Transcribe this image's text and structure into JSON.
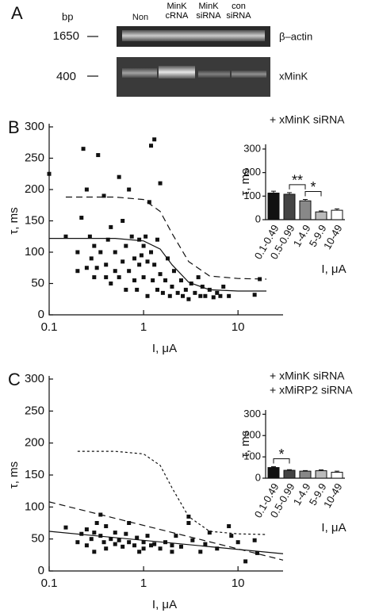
{
  "gel": {
    "panel_label": "A",
    "unit": "bp",
    "markers": [
      "1650",
      "400"
    ],
    "lanes": [
      "Non",
      "MinK cRNA",
      "MinK siRNA",
      "con siRNA"
    ],
    "rows": [
      "β–actin",
      "xMinK"
    ]
  },
  "chart_data": [
    {
      "type": "scatter",
      "panel_label": "B",
      "annotations": [
        "+ xMinK siRNA"
      ],
      "xlabel": "I, μA",
      "ylabel": "τ, ms",
      "xscale": "log",
      "xlim": [
        0.1,
        30
      ],
      "xticks": [
        0.1,
        1,
        10
      ],
      "ylim": [
        0,
        300
      ],
      "yticks": [
        0,
        50,
        100,
        150,
        200,
        250,
        300
      ],
      "points": {
        "color": "#111111",
        "x": [
          0.1,
          0.15,
          0.2,
          0.2,
          0.22,
          0.23,
          0.25,
          0.25,
          0.27,
          0.28,
          0.3,
          0.3,
          0.32,
          0.33,
          0.35,
          0.38,
          0.4,
          0.4,
          0.42,
          0.45,
          0.45,
          0.5,
          0.5,
          0.55,
          0.55,
          0.6,
          0.6,
          0.65,
          0.65,
          0.7,
          0.7,
          0.75,
          0.8,
          0.8,
          0.85,
          0.9,
          0.9,
          0.95,
          1,
          1,
          1.05,
          1.1,
          1.1,
          1.15,
          1.2,
          1.2,
          1.25,
          1.3,
          1.3,
          1.4,
          1.4,
          1.5,
          1.5,
          1.6,
          1.7,
          1.8,
          1.9,
          2,
          2.1,
          2.3,
          2.5,
          2.6,
          2.8,
          3,
          3.2,
          3.5,
          3.8,
          4,
          4.2,
          4.5,
          5,
          5.5,
          6,
          6.5,
          7,
          8,
          15,
          17
        ],
        "values": [
          225,
          125,
          70,
          100,
          155,
          265,
          75,
          200,
          125,
          90,
          60,
          110,
          75,
          255,
          100,
          190,
          60,
          80,
          120,
          50,
          140,
          70,
          100,
          220,
          60,
          85,
          150,
          40,
          110,
          200,
          70,
          125,
          55,
          90,
          40,
          80,
          120,
          95,
          60,
          110,
          125,
          30,
          85,
          180,
          100,
          270,
          55,
          280,
          80,
          40,
          120,
          65,
          210,
          35,
          55,
          90,
          30,
          45,
          70,
          35,
          55,
          30,
          40,
          25,
          50,
          35,
          60,
          30,
          45,
          30,
          40,
          28,
          35,
          30,
          45,
          30,
          32,
          57
        ]
      },
      "curves": [
        {
          "style": "dashed",
          "color": "#111111",
          "x": [
            0.15,
            0.5,
            1,
            1.5,
            2,
            3,
            5,
            10,
            20
          ],
          "values": [
            188,
            188,
            184,
            165,
            130,
            85,
            62,
            58,
            57
          ]
        },
        {
          "style": "solid",
          "color": "#111111",
          "x": [
            0.1,
            0.5,
            1,
            1.5,
            2,
            3,
            5,
            10,
            20
          ],
          "values": [
            122,
            122,
            118,
            105,
            80,
            52,
            40,
            38,
            38
          ]
        }
      ]
    },
    {
      "type": "bar",
      "xlabel": "I, μA",
      "ylabel": "τ, ms",
      "categories": [
        "0.1-0.49",
        "0.5-0.99",
        "1-4.9",
        "5-9.9",
        "10-49"
      ],
      "values": [
        113,
        108,
        80,
        33,
        40
      ],
      "error": [
        8,
        7,
        6,
        4,
        6
      ],
      "colors": [
        "#111111",
        "#444444",
        "#888888",
        "#bbbbbb",
        "#ffffff"
      ],
      "ylim": [
        0,
        320
      ],
      "yticks": [
        0,
        100,
        200,
        300
      ],
      "significance": [
        {
          "label": "**",
          "categories": [
            "0.5-0.99",
            "1-4.9"
          ]
        },
        {
          "label": "*",
          "categories": [
            "1-4.9",
            "5-9.9"
          ]
        }
      ]
    },
    {
      "type": "scatter",
      "panel_label": "C",
      "annotations": [
        "+ xMinK siRNA",
        "+ xMiRP2 siRNA"
      ],
      "xlabel": "I, μA",
      "ylabel": "τ, ms",
      "xscale": "log",
      "xlim": [
        0.1,
        30
      ],
      "xticks": [
        0.1,
        1,
        10
      ],
      "ylim": [
        0,
        300
      ],
      "yticks": [
        0,
        50,
        100,
        150,
        200,
        250,
        300
      ],
      "points": {
        "color": "#111111",
        "x": [
          0.15,
          0.2,
          0.22,
          0.25,
          0.25,
          0.28,
          0.3,
          0.3,
          0.32,
          0.35,
          0.35,
          0.38,
          0.4,
          0.4,
          0.45,
          0.5,
          0.5,
          0.55,
          0.6,
          0.65,
          0.7,
          0.7,
          0.8,
          0.85,
          0.9,
          1,
          1,
          1.1,
          1.2,
          1.3,
          1.5,
          1.7,
          2,
          2,
          2.2,
          2.5,
          3,
          3,
          3.3,
          4,
          4.5,
          5,
          6,
          8,
          8.5,
          10,
          12,
          15,
          16
        ],
        "values": [
          68,
          45,
          58,
          40,
          65,
          50,
          60,
          30,
          75,
          55,
          88,
          45,
          70,
          35,
          50,
          60,
          42,
          48,
          38,
          58,
          75,
          45,
          40,
          52,
          30,
          45,
          35,
          55,
          40,
          42,
          35,
          45,
          40,
          30,
          55,
          38,
          75,
          85,
          48,
          30,
          42,
          60,
          35,
          70,
          55,
          45,
          15,
          48,
          28
        ]
      },
      "curves": [
        {
          "style": "dotted",
          "color": "#111111",
          "x": [
            0.2,
            0.5,
            1,
            1.5,
            2,
            3,
            5,
            10,
            20
          ],
          "values": [
            187,
            187,
            183,
            165,
            130,
            85,
            62,
            58,
            57
          ]
        },
        {
          "style": "dashed",
          "color": "#111111",
          "x": [
            0.1,
            30
          ],
          "values": [
            108,
            17
          ]
        },
        {
          "style": "solid",
          "color": "#111111",
          "x": [
            0.1,
            30
          ],
          "values": [
            62,
            27
          ]
        }
      ]
    },
    {
      "type": "bar",
      "xlabel": "I, μA",
      "ylabel": "τ, ms",
      "categories": [
        "0.1-0.49",
        "0.5-0.99",
        "1-4.9",
        "5-9.9",
        "10-49"
      ],
      "values": [
        50,
        37,
        33,
        35,
        28
      ],
      "error": [
        4,
        3,
        3,
        4,
        5
      ],
      "colors": [
        "#111111",
        "#444444",
        "#888888",
        "#bbbbbb",
        "#ffffff"
      ],
      "ylim": [
        0,
        320
      ],
      "yticks": [
        0,
        100,
        200,
        300
      ],
      "significance": [
        {
          "label": "*",
          "categories": [
            "0.1-0.49",
            "0.5-0.99"
          ]
        }
      ]
    }
  ]
}
